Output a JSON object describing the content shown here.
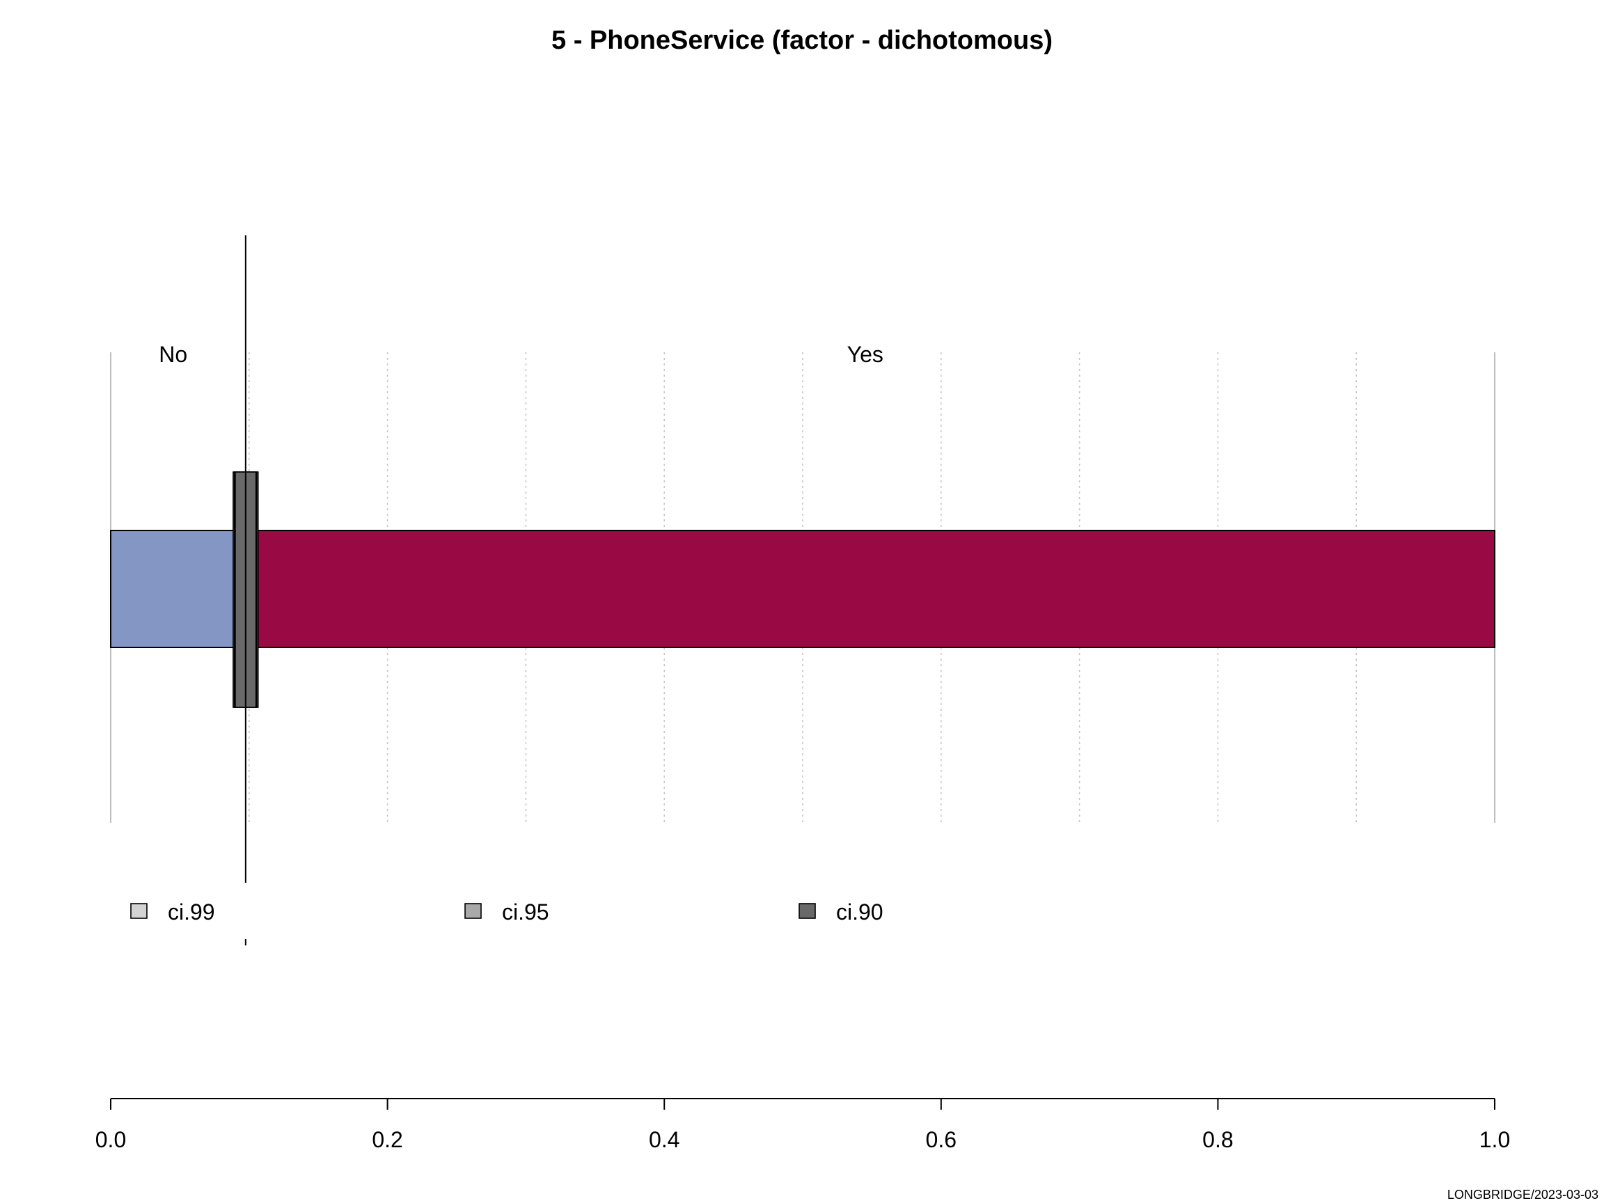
{
  "chart_data": {
    "type": "bar",
    "orientation": "horizontal",
    "stacked": true,
    "title": "5 - PhoneService (factor - dichotomous)",
    "categories": [
      "No",
      "Yes"
    ],
    "values": [
      0.0903,
      0.9097
    ],
    "colors": {
      "No": "#8497c4",
      "Yes": "#990a45"
    },
    "reference_line": 0.0975,
    "confidence_intervals": [
      {
        "name": "ci.99",
        "lower": 0.0885,
        "upper": 0.1065,
        "color": "#d3d3d3"
      },
      {
        "name": "ci.95",
        "lower": 0.0893,
        "upper": 0.1056,
        "color": "#a9a9a9"
      },
      {
        "name": "ci.90",
        "lower": 0.09,
        "upper": 0.105,
        "color": "#696969"
      }
    ],
    "xlim": [
      0,
      1
    ],
    "x_ticks": [
      0.0,
      0.2,
      0.4,
      0.6,
      0.8,
      1.0
    ],
    "x_tick_labels": [
      "0.0",
      "0.2",
      "0.4",
      "0.6",
      "0.8",
      "1.0"
    ],
    "gridlines": [
      0.1,
      0.2,
      0.3,
      0.4,
      0.5,
      0.6,
      0.7,
      0.8,
      0.9
    ],
    "legend": {
      "position": "bottom",
      "items": [
        "ci.99",
        "ci.95",
        "ci.90"
      ]
    },
    "footer": "LONGBRIDGE/2023-03-03"
  }
}
